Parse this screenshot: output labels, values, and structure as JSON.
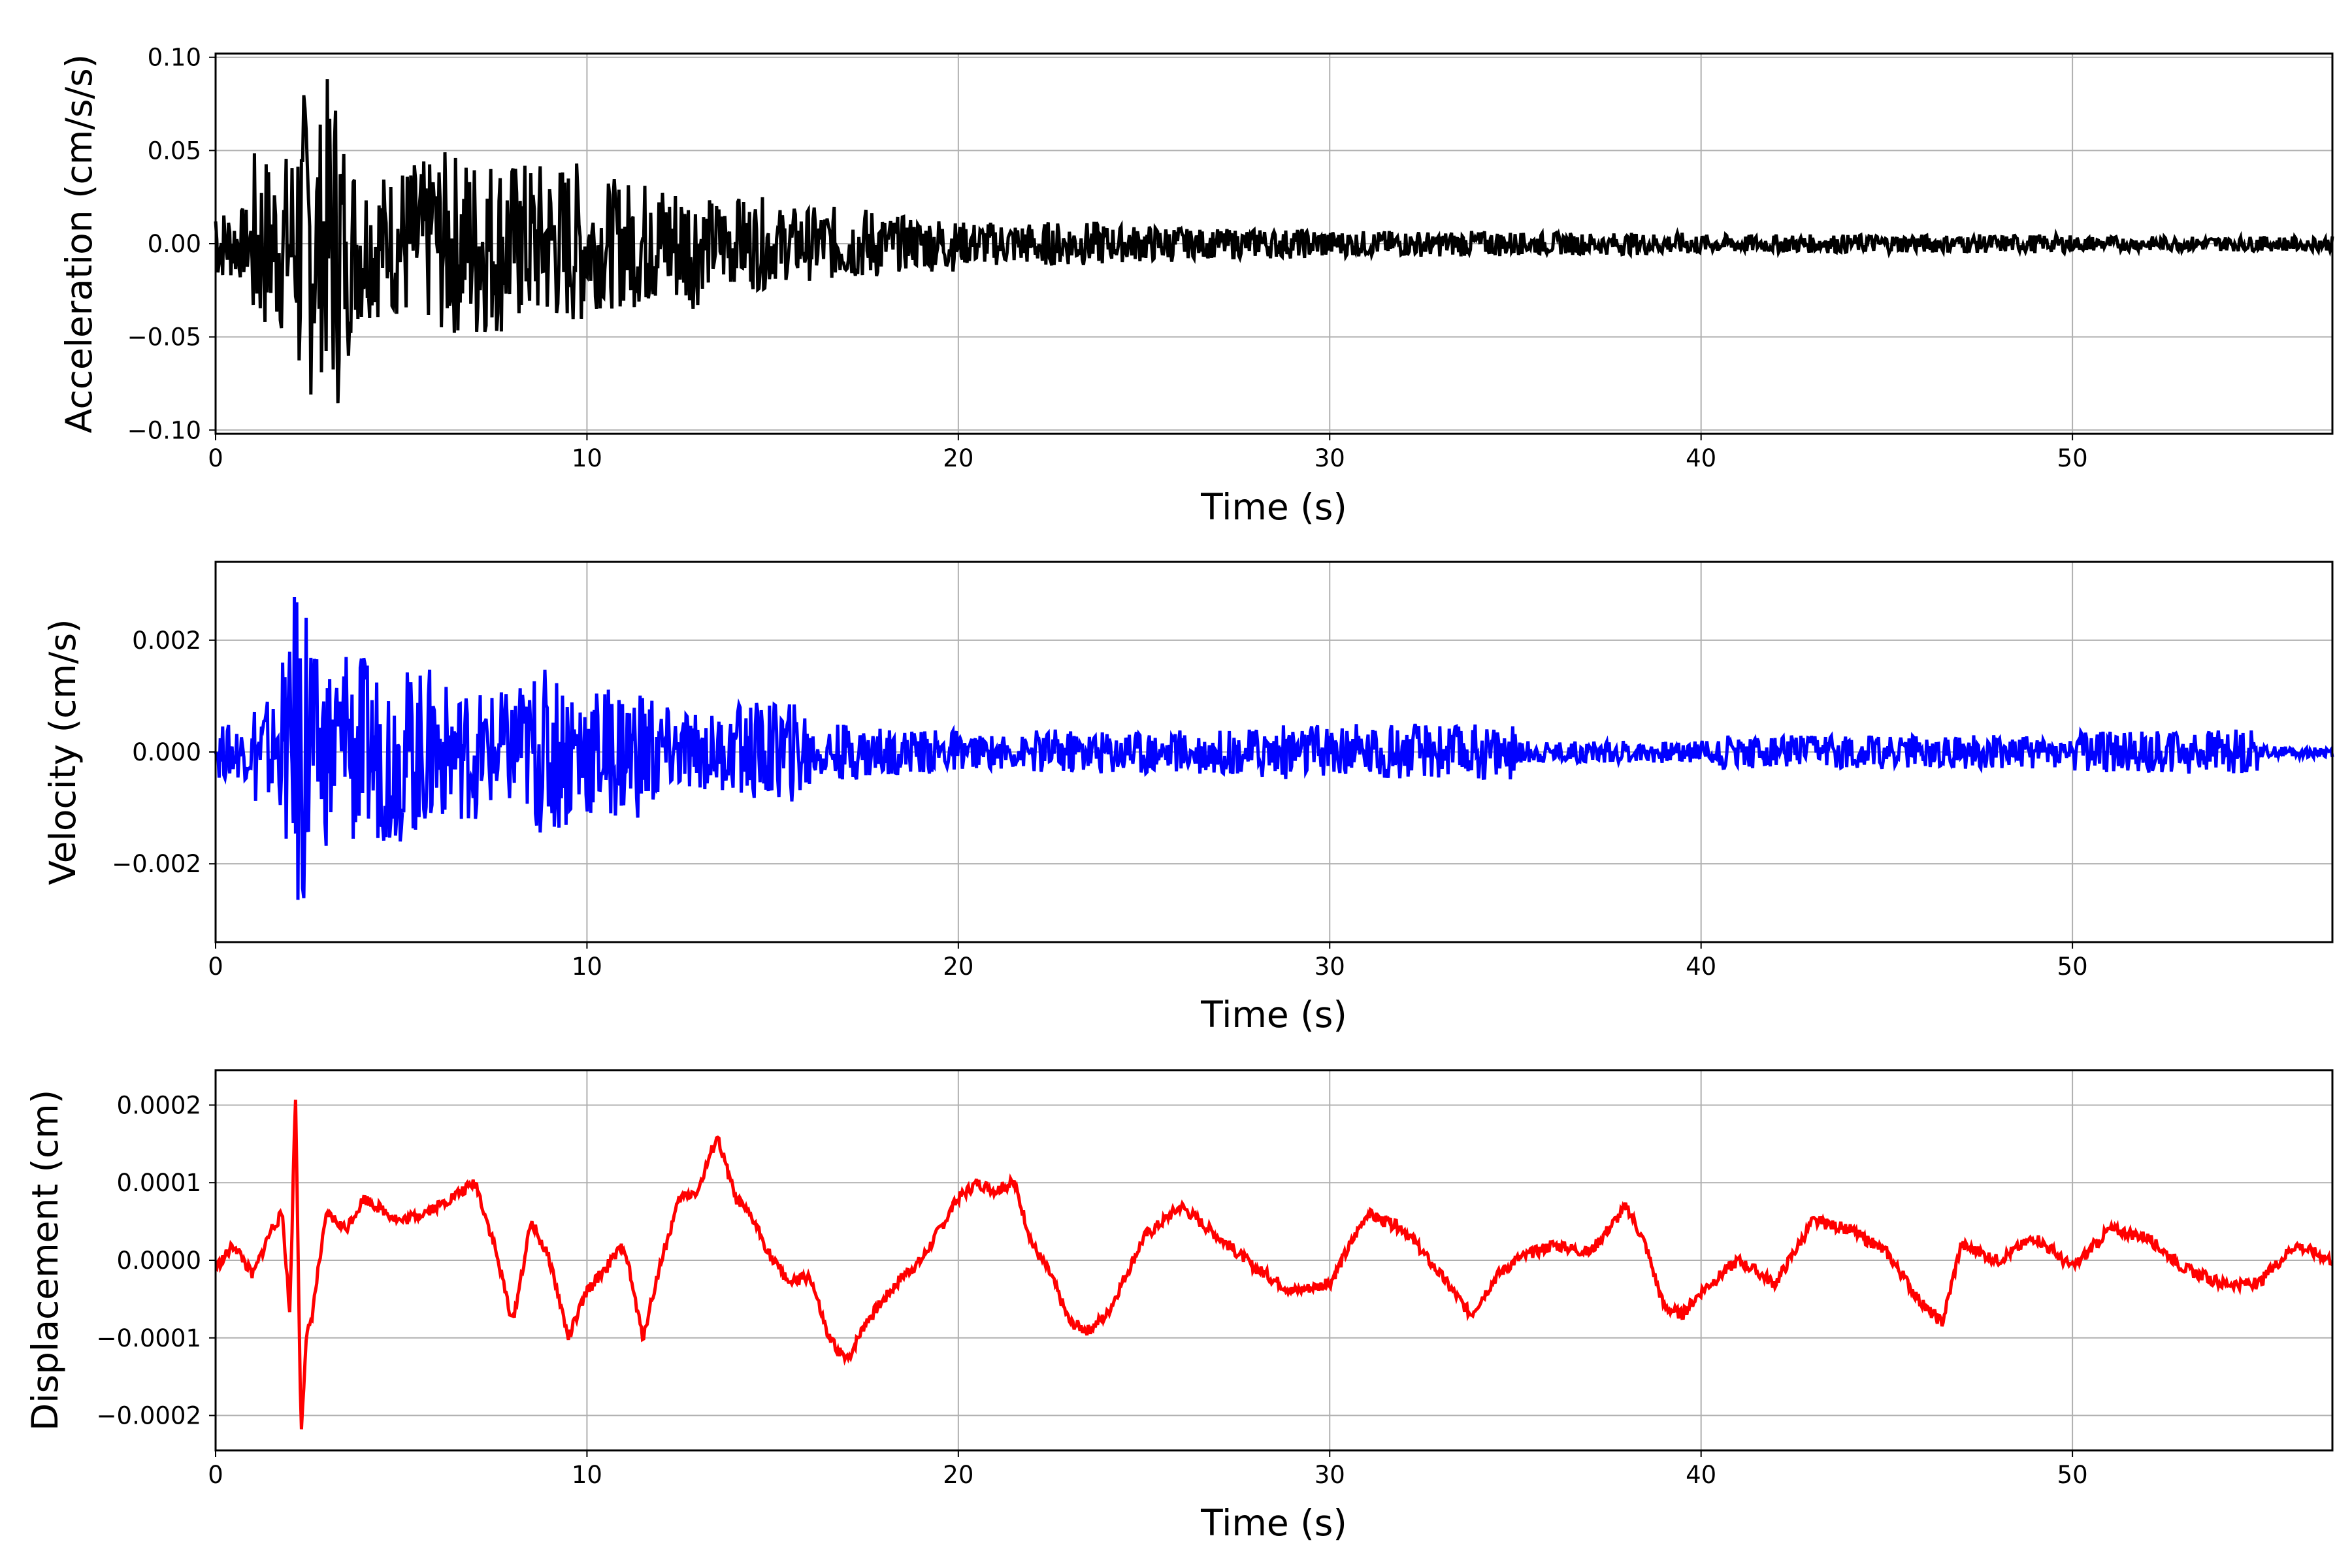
{
  "chart_data": [
    {
      "type": "line",
      "xlabel": "Time (s)",
      "ylabel": "Acceleration (cm/s/s)",
      "xlim": [
        0,
        57
      ],
      "ylim": [
        -0.102,
        0.102
      ],
      "xticks": [
        0,
        10,
        20,
        30,
        40,
        50
      ],
      "xtick_labels": [
        "0",
        "10",
        "20",
        "30",
        "40",
        "50"
      ],
      "yticks": [
        -0.1,
        -0.05,
        0.0,
        0.05,
        0.1
      ],
      "ytick_labels": [
        "−0.10",
        "−0.05",
        "0.00",
        "0.05",
        "0.10"
      ],
      "grid": true,
      "color": "#000000",
      "series": [
        {
          "x": [
            0,
            1,
            2,
            2.2,
            2.4,
            2.6,
            2.8,
            3.0,
            3.2,
            3.4,
            3.6,
            3.8,
            4,
            5,
            6,
            7,
            8,
            9,
            10,
            11,
            12,
            13,
            14,
            15,
            16,
            18,
            20,
            22,
            24,
            26,
            28,
            30,
            35,
            40,
            45,
            50,
            55,
            57
          ],
          "values": [
            0.012,
            -0.02,
            0.05,
            -0.06,
            0.085,
            -0.075,
            0.07,
            -0.06,
            0.09,
            -0.065,
            0.05,
            -0.045,
            0.04,
            -0.04,
            0.045,
            -0.05,
            0.04,
            -0.045,
            0.035,
            -0.03,
            0.035,
            -0.025,
            0.025,
            -0.02,
            0.02,
            -0.015,
            0.012,
            -0.012,
            0.01,
            -0.008,
            0.008,
            -0.007,
            0.006,
            -0.005,
            0.005,
            -0.004,
            0.004,
            -0.003
          ]
        }
      ]
    },
    {
      "type": "line",
      "xlabel": "Time (s)",
      "ylabel": "Velocity (cm/s)",
      "xlim": [
        0,
        57
      ],
      "ylim": [
        -0.0034,
        0.0034
      ],
      "xticks": [
        0,
        10,
        20,
        30,
        40,
        50
      ],
      "xtick_labels": [
        "0",
        "10",
        "20",
        "30",
        "40",
        "50"
      ],
      "yticks": [
        -0.002,
        0.0,
        0.002
      ],
      "ytick_labels": [
        "−0.002",
        "0.000",
        "0.002"
      ],
      "grid": true,
      "color": "#0000ff",
      "series": [
        {
          "x": [
            0,
            1,
            1.8,
            2.1,
            2.3,
            2.6,
            3.0,
            3.5,
            4,
            5,
            6,
            7,
            8,
            8.5,
            9,
            10,
            11,
            12,
            13,
            14,
            15,
            16,
            18,
            20,
            22,
            25,
            28,
            31,
            35,
            40,
            45,
            50,
            52,
            55,
            57
          ],
          "values": [
            0.0,
            0.0005,
            -0.001,
            0.0018,
            -0.0031,
            0.0015,
            -0.0017,
            0.0018,
            -0.0016,
            -0.0015,
            0.0012,
            -0.001,
            0.0011,
            0.0012,
            -0.0015,
            0.0008,
            -0.0012,
            0.0008,
            -0.0004,
            0.0007,
            0.0009,
            -0.0005,
            0.0004,
            0.0003,
            -0.0003,
            0.0004,
            -0.0002,
            0.0005,
            -0.0002,
            0.0002,
            0.0003,
            0.0002,
            0.0004,
            0.0001,
            -0.0001
          ]
        }
      ]
    },
    {
      "type": "line",
      "xlabel": "Time (s)",
      "ylabel": "Displacement (cm)",
      "xlim": [
        0,
        57
      ],
      "ylim": [
        -0.000245,
        0.000245
      ],
      "xticks": [
        0,
        10,
        20,
        30,
        40,
        50
      ],
      "xtick_labels": [
        "0",
        "10",
        "20",
        "30",
        "40",
        "50"
      ],
      "yticks": [
        -0.0002,
        -0.0001,
        0.0,
        0.0001,
        0.0002
      ],
      "ytick_labels": [
        "−0.0002",
        "−0.0001",
        "0.0000",
        "0.0001",
        "0.0002"
      ],
      "grid": true,
      "color": "#ff0000",
      "series": [
        {
          "x": [
            0,
            0.5,
            1,
            1.5,
            1.8,
            2.0,
            2.15,
            2.3,
            2.45,
            2.6,
            2.8,
            3.0,
            3.5,
            4,
            5,
            6,
            7,
            7.5,
            8,
            8.5,
            9,
            9.5,
            10,
            11,
            11.5,
            12,
            12.5,
            13,
            13.5,
            14,
            14.5,
            15,
            15.5,
            16,
            16.5,
            17,
            17.5,
            18,
            18.5,
            19,
            19.5,
            20,
            20.5,
            21,
            21.5,
            22,
            22.5,
            23,
            23.5,
            24,
            25,
            26,
            27,
            28,
            29,
            30,
            31,
            32,
            33,
            33.8,
            34.5,
            35,
            36,
            37,
            38,
            38.5,
            39,
            39.5,
            40,
            41,
            42,
            43,
            44,
            45,
            46,
            46.5,
            47,
            48,
            49,
            50,
            51,
            52,
            53,
            54,
            55,
            56,
            57
          ],
          "values": [
            -1e-05,
            2e-05,
            -2e-05,
            4e-05,
            6e-05,
            -7e-05,
            0.00022,
            -0.00022,
            -0.0001,
            -7e-05,
            0.0,
            6e-05,
            4e-05,
            8e-05,
            5e-05,
            7e-05,
            0.0001,
            2e-05,
            -8e-05,
            5e-05,
            0.0,
            -0.0001,
            -4e-05,
            2e-05,
            -0.0001,
            0.0,
            8e-05,
            9e-05,
            0.00016,
            8e-05,
            5e-05,
            0.0,
            -3e-05,
            -2e-05,
            -0.0001,
            -0.00013,
            -8e-05,
            -5e-05,
            -2e-05,
            0.0,
            4e-05,
            8e-05,
            0.0001,
            9e-05,
            0.0001,
            2e-05,
            -2e-05,
            -8e-05,
            -9e-05,
            -7e-05,
            3e-05,
            7e-05,
            3e-05,
            -1e-05,
            -4e-05,
            -3e-05,
            6e-05,
            4e-05,
            -2e-05,
            -7e-05,
            -2e-05,
            0.0,
            2e-05,
            1e-05,
            7e-05,
            2e-05,
            -6e-05,
            -7e-05,
            -4e-05,
            0.0,
            -3e-05,
            5e-05,
            4e-05,
            1e-05,
            -6e-05,
            -8e-05,
            2e-05,
            0.0,
            3e-05,
            -1e-05,
            4e-05,
            3e-05,
            -1e-05,
            -3e-05,
            -3e-05,
            2e-05,
            0.0
          ]
        }
      ]
    }
  ]
}
